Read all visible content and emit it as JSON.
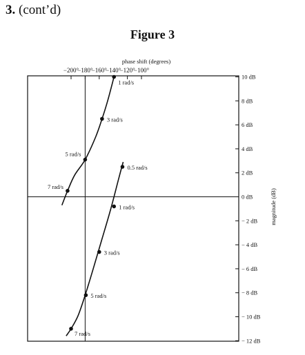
{
  "header": {
    "number": "3.",
    "text": "(cont’d)"
  },
  "figure_title": "Figure 3",
  "chart_data": {
    "type": "line",
    "title": "Figure 3",
    "xlabel": "phase shift (degrees)",
    "ylabel": "magnitude (dB)",
    "xlim": [
      -215,
      -96
    ],
    "ylim": [
      -12,
      10
    ],
    "x_ticks": [
      -200,
      -180,
      -160,
      -140,
      -120,
      -100
    ],
    "x_tick_labels": [
      "−200°",
      "−180°",
      "−160°",
      "−140°",
      "−120°",
      "−100°"
    ],
    "y_ticks": [
      10,
      8,
      6,
      4,
      2,
      0,
      -2,
      -4,
      -6,
      -8,
      -10,
      -12
    ],
    "y_tick_labels": [
      "10 dB",
      "8 dB",
      "6 dB",
      "4 dB",
      "2 dB",
      "0 dB",
      "− 2 dB",
      "− 4 dB",
      "− 6 dB",
      "− 8 dB",
      "− 10 dB",
      "− 12 dB"
    ],
    "reference_lines": {
      "x": -180,
      "y": 0
    },
    "grid": false,
    "series": [
      {
        "points": [
          [
            -213,
            -0.7
          ],
          [
            -205,
            0.5
          ],
          [
            -195,
            1.8
          ],
          [
            -180,
            3.1
          ],
          [
            -165,
            5.0
          ],
          [
            -156,
            6.5
          ],
          [
            -148,
            8.0
          ],
          [
            -139,
            10.0
          ]
        ],
        "markers": [
          {
            "x": -139,
            "y": 10.0,
            "label": "1 rad/s"
          },
          {
            "x": -156,
            "y": 6.5,
            "label": "3 rad/s"
          },
          {
            "x": -180,
            "y": 3.1,
            "label": "5 rad/s"
          },
          {
            "x": -205,
            "y": 0.5,
            "label": "7 rad/s"
          }
        ]
      },
      {
        "points": [
          [
            -207,
            -11.6
          ],
          [
            -200,
            -11.0
          ],
          [
            -190,
            -9.9
          ],
          [
            -180,
            -8.2
          ],
          [
            -168,
            -5.9
          ],
          [
            -156,
            -3.5
          ],
          [
            -144,
            -1.1
          ],
          [
            -132,
            1.6
          ],
          [
            -126,
            2.9
          ]
        ],
        "markers": [
          {
            "x": -127,
            "y": 2.5,
            "label": "0.5 rad/s"
          },
          {
            "x": -139,
            "y": -0.8,
            "label": "1 rad/s"
          },
          {
            "x": -160,
            "y": -4.6,
            "label": "3 rad/s"
          },
          {
            "x": -179,
            "y": -8.2,
            "label": "5 rad/s"
          },
          {
            "x": -200,
            "y": -11.0,
            "label": "7 rad/s"
          }
        ]
      }
    ]
  }
}
